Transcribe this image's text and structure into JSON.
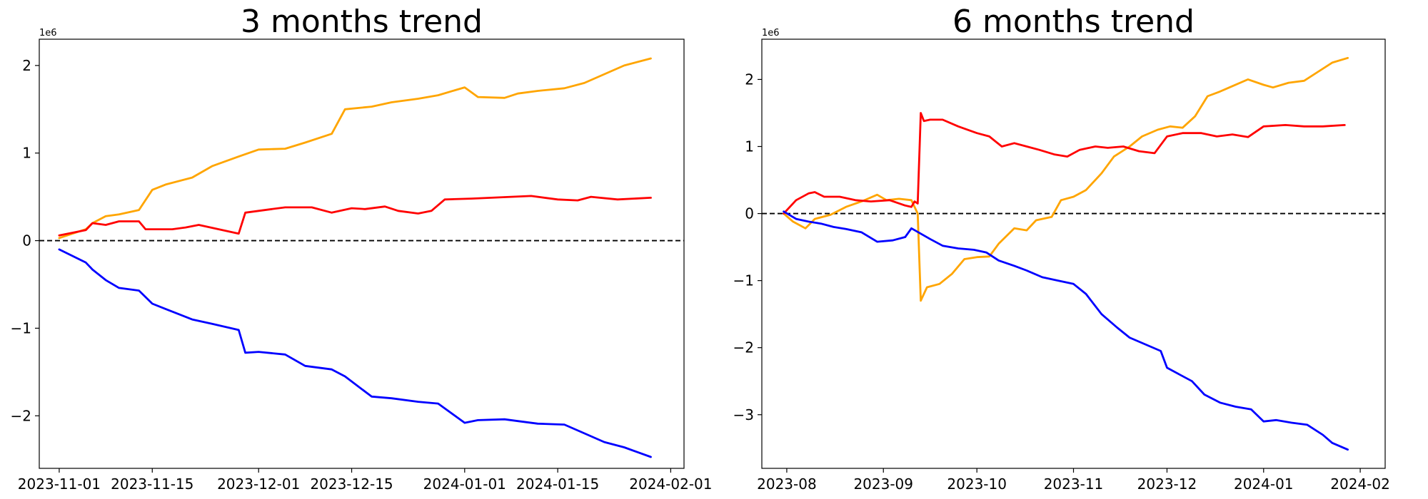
{
  "chart_data": [
    {
      "type": "line",
      "title": "3 months trend",
      "xlabel": "",
      "ylabel": "",
      "y_multiplier": "1e6",
      "x_axis_type": "date",
      "xlim": [
        "2023-10-29",
        "2024-02-03"
      ],
      "ylim": [
        -2.6,
        2.3
      ],
      "x_ticks": [
        "2023-11-01",
        "2023-11-15",
        "2023-12-01",
        "2023-12-15",
        "2024-01-01",
        "2024-01-15",
        "2024-02-01"
      ],
      "y_ticks": [
        -2,
        -1,
        0,
        1,
        2
      ],
      "y_tick_labels": [
        "−2",
        "−1",
        "0",
        "1",
        "2"
      ],
      "grid": false,
      "reference_line": {
        "y": 0,
        "style": "dashed",
        "color": "#000000"
      },
      "series": [
        {
          "color": "#ffa500",
          "x": [
            "2023-11-01",
            "2023-11-05",
            "2023-11-06",
            "2023-11-08",
            "2023-11-10",
            "2023-11-13",
            "2023-11-15",
            "2023-11-17",
            "2023-11-21",
            "2023-11-24",
            "2023-11-28",
            "2023-12-01",
            "2023-12-05",
            "2023-12-08",
            "2023-12-12",
            "2023-12-14",
            "2023-12-18",
            "2023-12-21",
            "2023-12-25",
            "2023-12-28",
            "2024-01-01",
            "2024-01-03",
            "2024-01-07",
            "2024-01-09",
            "2024-01-12",
            "2024-01-16",
            "2024-01-19",
            "2024-01-22",
            "2024-01-25",
            "2024-01-29"
          ],
          "values": [
            0.03,
            0.13,
            0.2,
            0.28,
            0.3,
            0.35,
            0.58,
            0.64,
            0.72,
            0.85,
            0.96,
            1.04,
            1.05,
            1.12,
            1.22,
            1.5,
            1.53,
            1.58,
            1.62,
            1.66,
            1.75,
            1.64,
            1.63,
            1.68,
            1.71,
            1.74,
            1.8,
            1.9,
            2.0,
            2.08
          ]
        },
        {
          "color": "#ff0000",
          "x": [
            "2023-11-01",
            "2023-11-05",
            "2023-11-06",
            "2023-11-08",
            "2023-11-10",
            "2023-11-13",
            "2023-11-14",
            "2023-11-18",
            "2023-11-20",
            "2023-11-22",
            "2023-11-28",
            "2023-11-29",
            "2023-12-03",
            "2023-12-05",
            "2023-12-09",
            "2023-12-12",
            "2023-12-15",
            "2023-12-17",
            "2023-12-20",
            "2023-12-22",
            "2023-12-25",
            "2023-12-27",
            "2023-12-29",
            "2024-01-02",
            "2024-01-05",
            "2024-01-08",
            "2024-01-11",
            "2024-01-15",
            "2024-01-18",
            "2024-01-20",
            "2024-01-24",
            "2024-01-29"
          ],
          "values": [
            0.06,
            0.12,
            0.2,
            0.18,
            0.22,
            0.22,
            0.13,
            0.13,
            0.15,
            0.18,
            0.08,
            0.32,
            0.36,
            0.38,
            0.38,
            0.32,
            0.37,
            0.36,
            0.39,
            0.34,
            0.31,
            0.34,
            0.47,
            0.48,
            0.49,
            0.5,
            0.51,
            0.47,
            0.46,
            0.5,
            0.47,
            0.49
          ]
        },
        {
          "color": "#0000ff",
          "x": [
            "2023-11-01",
            "2023-11-05",
            "2023-11-06",
            "2023-11-08",
            "2023-11-10",
            "2023-11-13",
            "2023-11-15",
            "2023-11-17",
            "2023-11-21",
            "2023-11-24",
            "2023-11-28",
            "2023-11-29",
            "2023-12-01",
            "2023-12-05",
            "2023-12-08",
            "2023-12-12",
            "2023-12-14",
            "2023-12-18",
            "2023-12-21",
            "2023-12-25",
            "2023-12-28",
            "2024-01-01",
            "2024-01-03",
            "2024-01-07",
            "2024-01-09",
            "2024-01-12",
            "2024-01-16",
            "2024-01-19",
            "2024-01-22",
            "2024-01-25",
            "2024-01-29"
          ],
          "values": [
            -0.1,
            -0.25,
            -0.33,
            -0.45,
            -0.54,
            -0.57,
            -0.72,
            -0.78,
            -0.9,
            -0.95,
            -1.02,
            -1.28,
            -1.27,
            -1.3,
            -1.43,
            -1.47,
            -1.55,
            -1.78,
            -1.8,
            -1.84,
            -1.86,
            -2.08,
            -2.05,
            -2.04,
            -2.06,
            -2.09,
            -2.1,
            -2.2,
            -2.3,
            -2.36,
            -2.47
          ]
        }
      ]
    },
    {
      "type": "line",
      "title": "6 months trend",
      "xlabel": "",
      "ylabel": "",
      "y_multiplier": "1e6",
      "x_axis_type": "date",
      "xlim": [
        "2023-07-24",
        "2024-02-09"
      ],
      "ylim": [
        -3.8,
        2.6
      ],
      "x_ticks": [
        "2023-08-01",
        "2023-09-01",
        "2023-10-01",
        "2023-11-01",
        "2023-12-01",
        "2024-01-01",
        "2024-02-01"
      ],
      "x_tick_labels": [
        "2023-08",
        "2023-09",
        "2023-10",
        "2023-11",
        "2023-12",
        "2024-01",
        "2024-02"
      ],
      "y_ticks": [
        -3,
        -2,
        -1,
        0,
        1,
        2
      ],
      "y_tick_labels": [
        "−3",
        "−2",
        "−1",
        "0",
        "1",
        "2"
      ],
      "grid": false,
      "reference_line": {
        "y": 0,
        "style": "dashed",
        "color": "#000000"
      },
      "series": [
        {
          "color": "#ffa500",
          "x": [
            "2023-07-31",
            "2023-08-03",
            "2023-08-07",
            "2023-08-10",
            "2023-08-15",
            "2023-08-20",
            "2023-08-25",
            "2023-08-30",
            "2023-09-02",
            "2023-09-06",
            "2023-09-10",
            "2023-09-12",
            "2023-09-13",
            "2023-09-15",
            "2023-09-19",
            "2023-09-23",
            "2023-09-27",
            "2023-10-01",
            "2023-10-05",
            "2023-10-08",
            "2023-10-13",
            "2023-10-17",
            "2023-10-20",
            "2023-10-25",
            "2023-10-28",
            "2023-11-01",
            "2023-11-05",
            "2023-11-10",
            "2023-11-14",
            "2023-11-19",
            "2023-11-23",
            "2023-11-28",
            "2023-12-02",
            "2023-12-06",
            "2023-12-10",
            "2023-12-14",
            "2023-12-18",
            "2023-12-22",
            "2023-12-27",
            "2024-01-01",
            "2024-01-04",
            "2024-01-09",
            "2024-01-14",
            "2024-01-18",
            "2024-01-23",
            "2024-01-28"
          ],
          "values": [
            0.0,
            -0.12,
            -0.22,
            -0.08,
            -0.02,
            0.1,
            0.18,
            0.28,
            0.2,
            0.22,
            0.2,
            0.0,
            -1.3,
            -1.1,
            -1.05,
            -0.9,
            -0.68,
            -0.65,
            -0.64,
            -0.45,
            -0.22,
            -0.25,
            -0.1,
            -0.05,
            0.2,
            0.25,
            0.35,
            0.6,
            0.85,
            1.0,
            1.15,
            1.25,
            1.3,
            1.28,
            1.45,
            1.75,
            1.82,
            1.9,
            2.0,
            1.92,
            1.88,
            1.95,
            1.98,
            2.1,
            2.25,
            2.32
          ]
        },
        {
          "color": "#ff0000",
          "x": [
            "2023-07-31",
            "2023-08-04",
            "2023-08-08",
            "2023-08-10",
            "2023-08-13",
            "2023-08-18",
            "2023-08-23",
            "2023-08-28",
            "2023-09-03",
            "2023-09-08",
            "2023-09-10",
            "2023-09-11",
            "2023-09-12",
            "2023-09-13",
            "2023-09-14",
            "2023-09-16",
            "2023-09-20",
            "2023-09-25",
            "2023-10-01",
            "2023-10-05",
            "2023-10-09",
            "2023-10-13",
            "2023-10-17",
            "2023-10-21",
            "2023-10-26",
            "2023-10-30",
            "2023-11-03",
            "2023-11-08",
            "2023-11-12",
            "2023-11-17",
            "2023-11-22",
            "2023-11-27",
            "2023-12-01",
            "2023-12-06",
            "2023-12-12",
            "2023-12-17",
            "2023-12-22",
            "2023-12-27",
            "2024-01-01",
            "2024-01-08",
            "2024-01-14",
            "2024-01-20",
            "2024-01-27"
          ],
          "values": [
            0.0,
            0.2,
            0.3,
            0.32,
            0.25,
            0.25,
            0.2,
            0.18,
            0.2,
            0.12,
            0.1,
            0.18,
            0.15,
            1.5,
            1.38,
            1.4,
            1.4,
            1.3,
            1.2,
            1.15,
            1.0,
            1.05,
            1.0,
            0.95,
            0.88,
            0.85,
            0.95,
            1.0,
            0.98,
            1.0,
            0.93,
            0.9,
            1.15,
            1.2,
            1.2,
            1.15,
            1.18,
            1.14,
            1.3,
            1.32,
            1.3,
            1.3,
            1.32
          ]
        },
        {
          "color": "#0000ff",
          "x": [
            "2023-07-31",
            "2023-08-04",
            "2023-08-08",
            "2023-08-12",
            "2023-08-16",
            "2023-08-20",
            "2023-08-25",
            "2023-08-30",
            "2023-09-04",
            "2023-09-08",
            "2023-09-10",
            "2023-09-13",
            "2023-09-16",
            "2023-09-20",
            "2023-09-25",
            "2023-09-30",
            "2023-10-04",
            "2023-10-08",
            "2023-10-13",
            "2023-10-17",
            "2023-10-22",
            "2023-10-27",
            "2023-11-01",
            "2023-11-05",
            "2023-11-10",
            "2023-11-15",
            "2023-11-19",
            "2023-11-24",
            "2023-11-29",
            "2023-12-01",
            "2023-12-05",
            "2023-12-09",
            "2023-12-13",
            "2023-12-18",
            "2023-12-23",
            "2023-12-28",
            "2024-01-01",
            "2024-01-05",
            "2024-01-10",
            "2024-01-15",
            "2024-01-20",
            "2024-01-23",
            "2024-01-28"
          ],
          "values": [
            0.03,
            -0.08,
            -0.12,
            -0.15,
            -0.2,
            -0.23,
            -0.28,
            -0.42,
            -0.4,
            -0.35,
            -0.22,
            -0.3,
            -0.38,
            -0.48,
            -0.52,
            -0.54,
            -0.58,
            -0.7,
            -0.78,
            -0.85,
            -0.95,
            -1.0,
            -1.05,
            -1.2,
            -1.5,
            -1.7,
            -1.85,
            -1.95,
            -2.05,
            -2.3,
            -2.4,
            -2.5,
            -2.7,
            -2.82,
            -2.88,
            -2.92,
            -3.1,
            -3.08,
            -3.12,
            -3.15,
            -3.3,
            -3.42,
            -3.52
          ]
        }
      ]
    }
  ]
}
